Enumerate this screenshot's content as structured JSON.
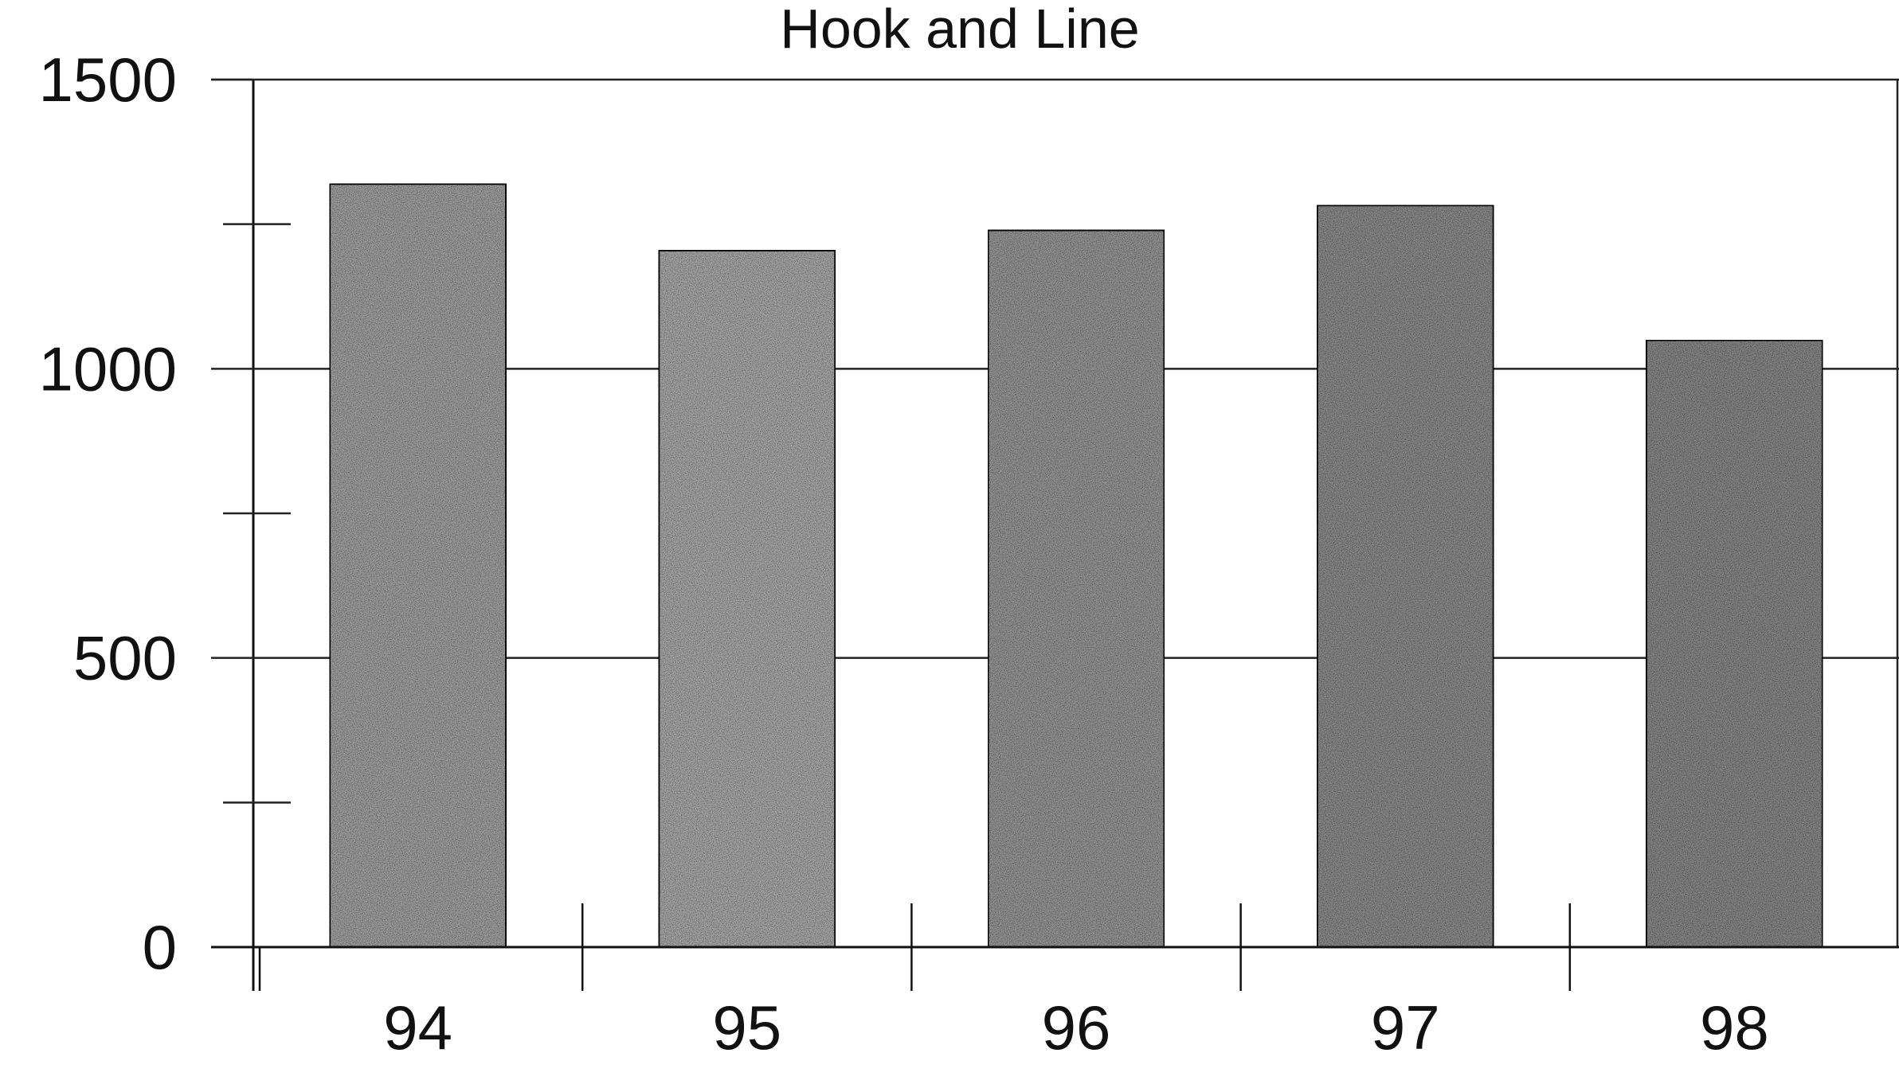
{
  "chart_data": {
    "type": "bar",
    "title": "Hook and Line",
    "xlabel": "",
    "ylabel": "",
    "categories": [
      "94",
      "95",
      "96",
      "97",
      "98"
    ],
    "values": [
      1320,
      1205,
      1240,
      1283,
      1050
    ],
    "ylim": [
      0,
      1500
    ],
    "y_ticks": [
      "0",
      "500",
      "1000",
      "1500"
    ],
    "y_tick_values": [
      0,
      500,
      1000,
      1500
    ],
    "grid": true,
    "bar_colors": [
      "#a3a3a3",
      "#ababab",
      "#999999",
      "#8e8e8e",
      "#8a8a8a"
    ]
  }
}
